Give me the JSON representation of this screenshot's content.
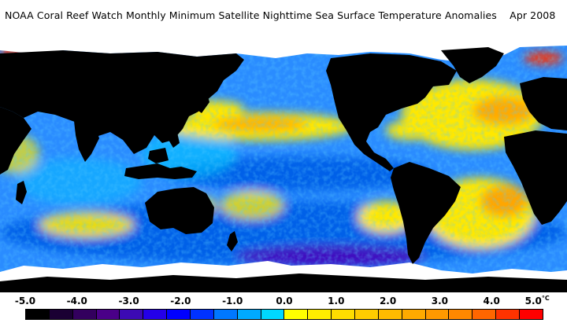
{
  "title": "NOAA Coral Reef Watch Monthly Minimum Satellite Nighttime Sea Surface Temperature Anomalies    Apr 2008",
  "colorbar": {
    "tick_labels": [
      "-5.0",
      "-4.0",
      "-3.0",
      "-2.0",
      "-1.0",
      "0.0",
      "1.0",
      "2.0",
      "3.0",
      "4.0",
      "5.0"
    ],
    "unit": "°C",
    "colors": [
      "#000000",
      "#1a0033",
      "#33005e",
      "#4a0088",
      "#3c0ab4",
      "#2400e8",
      "#0000ff",
      "#0032ff",
      "#0078ff",
      "#00aaff",
      "#00d8ff",
      "#ffff00",
      "#ffee00",
      "#ffdd00",
      "#ffcc00",
      "#ffbb00",
      "#ffaa00",
      "#ff9900",
      "#ff8800",
      "#ff6600",
      "#ff3300",
      "#ff0000"
    ]
  },
  "map_colors": {
    "land": "#000000",
    "ice": "#ffffff",
    "ocean_base": "#2a8cff",
    "cool": "#0060e8",
    "cool_deep": "#3f10c0",
    "neutral": "#00c8ff",
    "warm": "#ffe800",
    "hot": "#ff9a00",
    "very_hot": "#ff3000"
  }
}
